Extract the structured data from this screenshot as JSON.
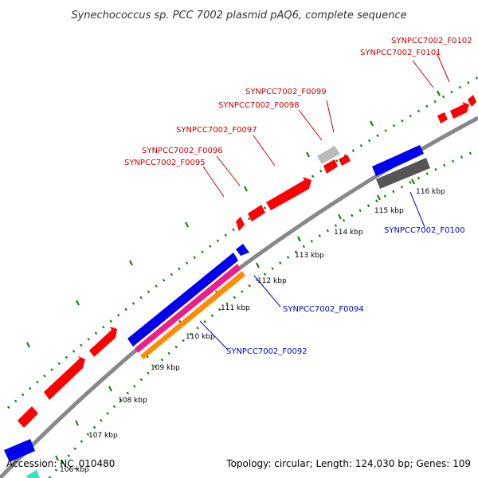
{
  "title": "Synechococcus sp. PCC 7002 plasmid pAQ6, complete sequence",
  "footer": {
    "accession": "Accession: NC_010480",
    "topology": "Topology: circular; Length: 124,030 bp; Genes: 109"
  },
  "colors": {
    "backbone": "#888888",
    "forward_gene": "#ff0000",
    "reverse_gene": "#0000ee",
    "pink_gene": "#ee1e8c",
    "orange_gene": "#ff8c00",
    "gray_gene": "#555555",
    "lightgray_gene": "#bbbbbb",
    "cyan_gene": "#33e0c0",
    "ticks": "#008000",
    "forward_label": "#cc0000",
    "reverse_label": "#0000cc"
  },
  "tick_labels": [
    "106 kbp",
    "107 kbp",
    "108 kbp",
    "109 kbp",
    "110 kbp",
    "111 kbp",
    "112 kbp",
    "113 kbp",
    "114 kbp",
    "115 kbp",
    "116 kbp"
  ],
  "gene_labels": [
    {
      "text": "SYNPCC7002_F0102",
      "strand": "forward"
    },
    {
      "text": "SYNPCC7002_F0101",
      "strand": "forward"
    },
    {
      "text": "SYNPCC7002_F0099",
      "strand": "forward"
    },
    {
      "text": "SYNPCC7002_F0098",
      "strand": "forward"
    },
    {
      "text": "SYNPCC7002_F0097",
      "strand": "forward"
    },
    {
      "text": "SYNPCC7002_F0096",
      "strand": "forward"
    },
    {
      "text": "SYNPCC7002_F0095",
      "strand": "forward"
    },
    {
      "text": "SYNPCC7002_F0100",
      "strand": "reverse"
    },
    {
      "text": "SYNPCC7002_F0094",
      "strand": "reverse"
    },
    {
      "text": "SYNPCC7002_F0092",
      "strand": "reverse"
    }
  ]
}
